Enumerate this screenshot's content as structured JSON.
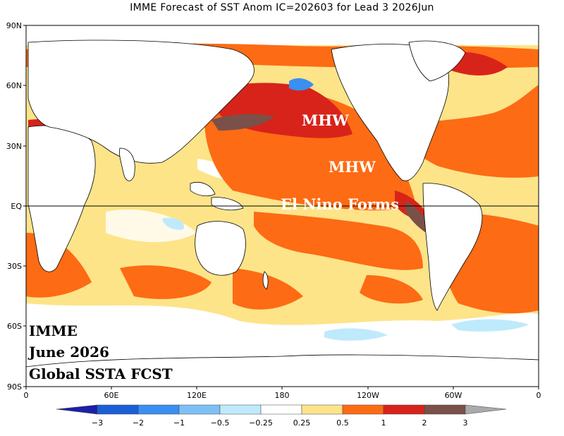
{
  "title": "IMME Forecast of SST Anom IC=202603 for Lead 3 2026Jun",
  "lat_ticks": [
    "90N",
    "60N",
    "30N",
    "EQ",
    "30S",
    "60S",
    "90S"
  ],
  "lon_ticks": [
    "0",
    "60E",
    "120E",
    "180",
    "120W",
    "60W",
    "0"
  ],
  "annotations": {
    "mhw_north": "MHW",
    "mhw_south": "MHW",
    "el_nino": "El Nino Forms"
  },
  "info_box": {
    "line1": "IMME",
    "line2": "June 2026",
    "line3": "Global SSTA FCST"
  },
  "colorbar": {
    "labels": [
      "−3",
      "−2",
      "−1",
      "−0.5",
      "−0.25",
      "0.25",
      "0.5",
      "1",
      "2",
      "3"
    ],
    "colors": [
      "#1e1ea8",
      "#1a5fd6",
      "#3a8ff0",
      "#7ec0f6",
      "#bfeafc",
      "#ffffff",
      "#fde489",
      "#fd6b14",
      "#d8231a",
      "#7a5048",
      "#aaaaaa"
    ]
  }
}
